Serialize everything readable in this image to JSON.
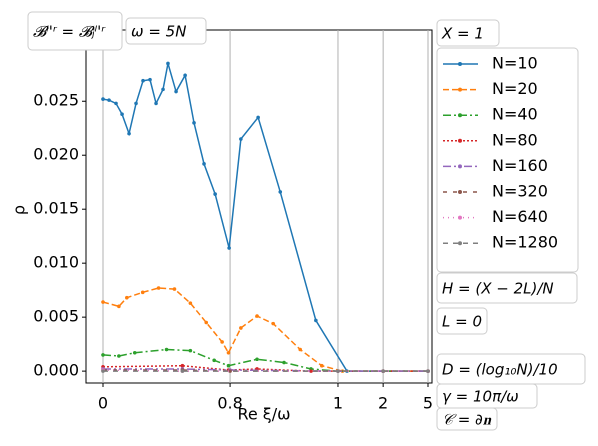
{
  "chart_data": {
    "type": "line",
    "x_label": "Re ξ/ω",
    "y_label": "ρ",
    "xlim": [
      0,
      5
    ],
    "ylim": [
      -0.0011,
      0.0316
    ],
    "xticks": [
      0,
      0.8,
      1,
      2,
      5
    ],
    "yticks": [
      {
        "value": 0,
        "label": "0.000"
      },
      {
        "value": 0.005,
        "label": "0.005"
      },
      {
        "value": 0.01,
        "label": "0.010"
      },
      {
        "value": 0.015,
        "label": "0.015"
      },
      {
        "value": 0.02,
        "label": "0.020"
      },
      {
        "value": 0.025,
        "label": "0.025"
      }
    ],
    "grid": true,
    "annotations": [
      "𝓑ˡ'ʳ = 𝓑ⱼˡ'ʳ",
      "ω = 5N",
      "X = 1",
      "H = (X − 2L)/N",
      "L = 0",
      "D = (log₁₀N)/10",
      "γ = 10π/ω",
      "𝒞 = ∂𝐧"
    ],
    "series": [
      {
        "name": "N=10",
        "color": "#1f77b4",
        "x": [
          0,
          0.038,
          0.082,
          0.12,
          0.164,
          0.208,
          0.252,
          0.296,
          0.334,
          0.378,
          0.409,
          0.46,
          0.517,
          0.573,
          0.636,
          0.706,
          0.794,
          0.82,
          0.852,
          0.893,
          0.959,
          1.2,
          2,
          5
        ],
        "values": [
          0.0252,
          0.0251,
          0.0248,
          0.0238,
          0.022,
          0.0248,
          0.0269,
          0.027,
          0.0248,
          0.0261,
          0.0285,
          0.0259,
          0.0274,
          0.023,
          0.0192,
          0.0164,
          0.0114,
          0.0215,
          0.0235,
          0.0166,
          0.0047,
          0,
          0,
          0
        ]
      },
      {
        "name": "N=20",
        "color": "#ff7f0e",
        "x": [
          0,
          0.1,
          0.15,
          0.25,
          0.35,
          0.45,
          0.55,
          0.65,
          0.75,
          0.79,
          0.82,
          0.85,
          0.88,
          0.93,
          0.97,
          1.1,
          2,
          5
        ],
        "values": [
          0.0064,
          0.006,
          0.0068,
          0.0073,
          0.0077,
          0.0076,
          0.0063,
          0.0045,
          0.0027,
          0.0017,
          0.004,
          0.0051,
          0.0044,
          0.002,
          0.0005,
          0,
          0,
          0
        ]
      },
      {
        "name": "N=40",
        "color": "#2ca02c",
        "x": [
          0,
          0.1,
          0.2,
          0.4,
          0.55,
          0.7,
          0.79,
          0.85,
          0.9,
          0.95,
          1,
          2,
          5
        ],
        "values": [
          0.0015,
          0.0014,
          0.0017,
          0.002,
          0.0019,
          0.001,
          0.0005,
          0.0011,
          0.0008,
          0.0002,
          0,
          0,
          0
        ]
      },
      {
        "name": "N=80",
        "color": "#d62728",
        "x": [
          0,
          0.5,
          0.79,
          0.85,
          0.95,
          2,
          5
        ],
        "values": [
          0.0004,
          0.0005,
          0.0001,
          0.0002,
          0,
          0,
          0
        ]
      },
      {
        "name": "N=160",
        "color": "#9467bd",
        "x": [
          0,
          0.5,
          0.8,
          1,
          2,
          5
        ],
        "values": [
          0.0002,
          0.0002,
          0.0001,
          0,
          0,
          0
        ]
      },
      {
        "name": "N=320",
        "color": "#8c564b",
        "x": [
          0,
          0.5,
          0.8,
          1,
          2,
          5
        ],
        "values": [
          0.0001,
          0.0001,
          0,
          0,
          0,
          0
        ]
      },
      {
        "name": "N=640",
        "color": "#e377c2",
        "x": [
          0,
          0.5,
          1,
          2,
          5
        ],
        "values": [
          0.0001,
          0,
          0,
          0,
          0
        ]
      },
      {
        "name": "N=1280",
        "color": "#7f7f7f",
        "x": [
          0,
          0.5,
          1,
          2,
          5
        ],
        "values": [
          0,
          0,
          0,
          0,
          0
        ]
      }
    ]
  }
}
